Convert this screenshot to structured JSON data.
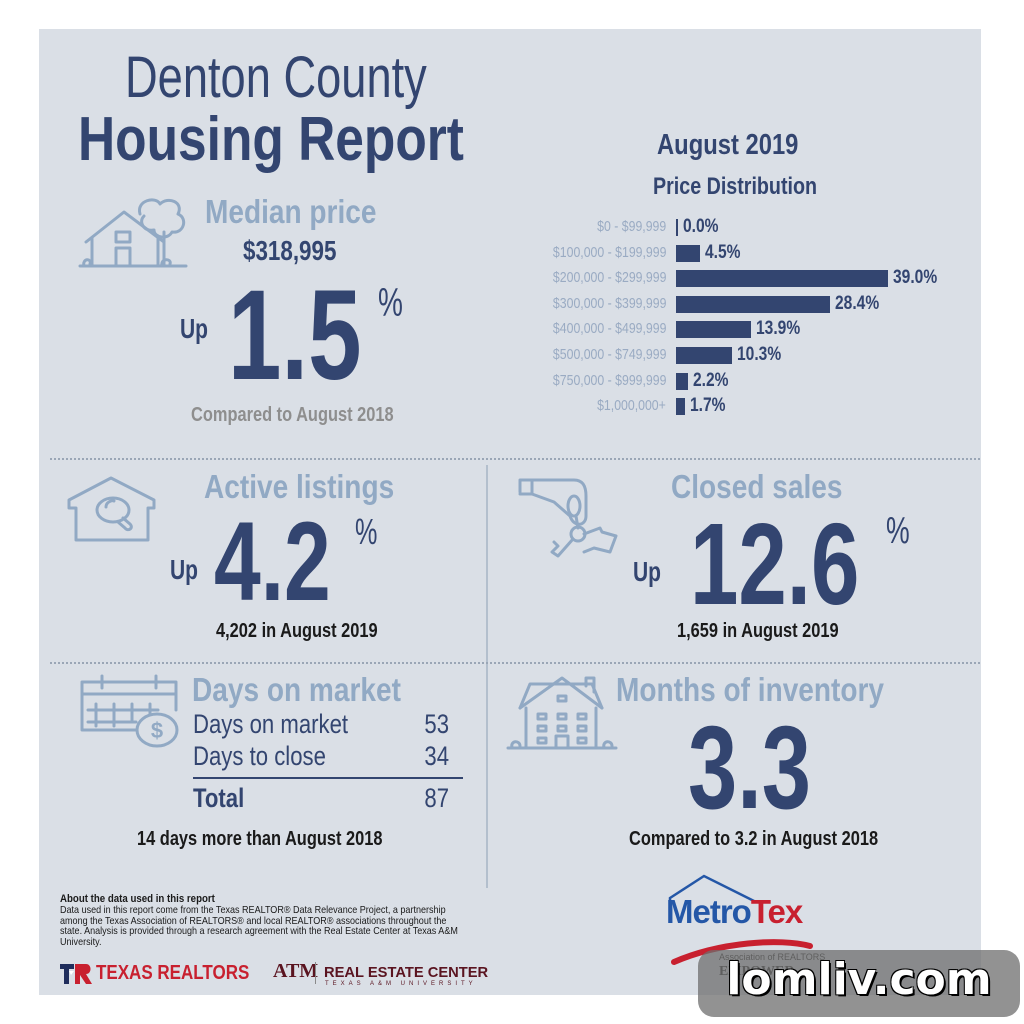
{
  "header": {
    "title_line1": "Denton County",
    "title_line2": "Housing Report",
    "month": "August 2019",
    "price_dist_title": "Price Distribution"
  },
  "median_price": {
    "title": "Median price",
    "value": "$318,995",
    "direction": "Up",
    "change": "1.5",
    "unit": "%",
    "comparison": "Compared to August 2018",
    "icon": "house-tree-icon"
  },
  "active_listings": {
    "title": "Active listings",
    "direction": "Up",
    "change": "4.2",
    "unit": "%",
    "detail": "4,202 in August 2019",
    "icon": "house-search-icon"
  },
  "closed_sales": {
    "title": "Closed sales",
    "direction": "Up",
    "change": "12.6",
    "unit": "%",
    "detail": "1,659 in August 2019",
    "icon": "hand-keys-icon"
  },
  "days_on_market": {
    "title": "Days on market",
    "rows": [
      {
        "label": "Days on market",
        "value": "53"
      },
      {
        "label": "Days to close",
        "value": "34"
      }
    ],
    "total_label": "Total",
    "total_value": "87",
    "comparison": "14 days more than August 2018",
    "icon": "calendar-dollar-icon"
  },
  "months_inventory": {
    "title": "Months of inventory",
    "value": "3.3",
    "comparison": "Compared to 3.2 in August 2018",
    "icon": "apartment-building-icon"
  },
  "about": {
    "heading": "About the data used in this report",
    "body": "Data used in this report come from the Texas REALTOR® Data Relevance Project, a partnership among the Texas Association of REALTORS® and local REALTOR® associations throughout the state. Analysis is provided through a research agreement with the Real Estate Center at Texas A&M University."
  },
  "logos": {
    "texas_realtors": "TEXAS REALTORS",
    "atm": "ATM",
    "real_estate_center": "REAL ESTATE CENTER",
    "real_estate_center_sub": "TEXAS A&M UNIVERSITY",
    "metrotex_metro": "Metro",
    "metrotex_tex": "Tex",
    "metrotex_assoc": "Association of REALTORS",
    "metrotex_empower": "EMPOWER.",
    "watermark": "lomliv.com"
  },
  "colors": {
    "navy": "#334570",
    "light_blue": "#91a9c4",
    "background": "#dadfe6",
    "red": "#c8202f"
  },
  "chart_data": {
    "type": "bar",
    "orientation": "horizontal",
    "title": "Price Distribution",
    "subtitle": "August 2019",
    "categories": [
      "$0 - $99,999",
      "$100,000 - $199,999",
      "$200,000 - $299,999",
      "$300,000 - $399,999",
      "$400,000 - $499,999",
      "$500,000 - $749,999",
      "$750,000 - $999,999",
      "$1,000,000+"
    ],
    "values": [
      0.0,
      4.5,
      39.0,
      28.4,
      13.9,
      10.3,
      2.2,
      1.7
    ],
    "labels": [
      "0.0%",
      "4.5%",
      "39.0%",
      "28.4%",
      "13.9%",
      "10.3%",
      "2.2%",
      "1.7%"
    ],
    "xlabel": "",
    "ylabel": "",
    "unit": "%",
    "grid": false,
    "legend": false
  }
}
